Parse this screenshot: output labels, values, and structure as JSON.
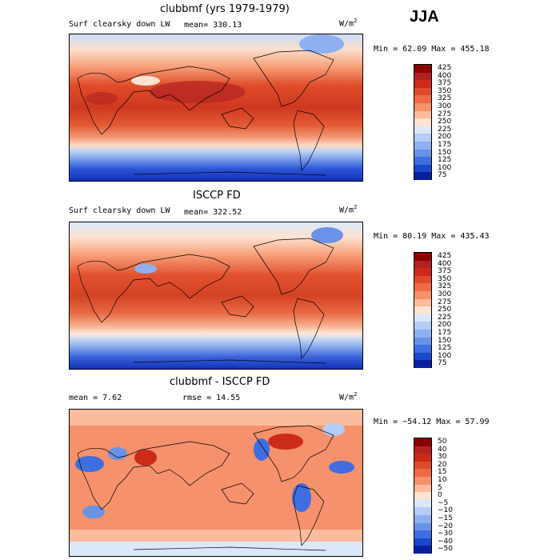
{
  "season": "JJA",
  "colors": {
    "p425": "#8b0000",
    "p400": "#b22222",
    "p375": "#cc2a1a",
    "p350": "#de4a2a",
    "p325": "#ee6a44",
    "p300": "#f5916c",
    "p275": "#fbbc9d",
    "p250": "#fde3d2",
    "p225": "#dbe8fa",
    "p200": "#b4ccf6",
    "p175": "#8eb0f0",
    "p150": "#6a92e8",
    "p125": "#3f6ee0",
    "p100": "#1c46cc",
    "p75": "#0a1fa0"
  },
  "panels": [
    {
      "title": "clubbmf (yrs 1979-1979)",
      "label": "Surf clearsky down LW",
      "mean_text": "mean= 330.13",
      "units": "W/m",
      "units_sup": "2",
      "minmax": "Min =  62.09 Max = 455.18",
      "colorbar_levels": [
        "425",
        "400",
        "375",
        "350",
        "325",
        "300",
        "275",
        "250",
        "225",
        "200",
        "175",
        "150",
        "125",
        "100",
        "75"
      ]
    },
    {
      "title": "ISCCP FD",
      "label": "Surf clearsky down LW",
      "mean_text": "mean= 322.52",
      "units": "W/m",
      "units_sup": "2",
      "minmax": "Min =  80.19 Max = 435.43",
      "colorbar_levels": [
        "425",
        "400",
        "375",
        "350",
        "325",
        "300",
        "275",
        "250",
        "225",
        "200",
        "175",
        "150",
        "125",
        "100",
        "75"
      ]
    },
    {
      "title": "clubbmf - ISCCP FD",
      "mean_text": "mean =    7.62",
      "rmse_text": "rmse =  14.55",
      "units": "W/m",
      "units_sup": "2",
      "minmax": "Min = −54.12 Max =  57.99",
      "colorbar_levels": [
        "50",
        "40",
        "30",
        "20",
        "15",
        "10",
        "5",
        "0",
        "−5",
        "−10",
        "−15",
        "−20",
        "−30",
        "−40",
        "−50"
      ]
    }
  ],
  "chart_data": [
    {
      "type": "heatmap",
      "title": "clubbmf (yrs 1979-1979)",
      "field": "Surf clearsky down LW",
      "units": "W/m2",
      "mean": 330.13,
      "min": 62.09,
      "max": 455.18,
      "levels": [
        75,
        100,
        125,
        150,
        175,
        200,
        225,
        250,
        275,
        300,
        325,
        350,
        375,
        400,
        425
      ]
    },
    {
      "type": "heatmap",
      "title": "ISCCP FD",
      "field": "Surf clearsky down LW",
      "units": "W/m2",
      "mean": 322.52,
      "min": 80.19,
      "max": 435.43,
      "levels": [
        75,
        100,
        125,
        150,
        175,
        200,
        225,
        250,
        275,
        300,
        325,
        350,
        375,
        400,
        425
      ]
    },
    {
      "type": "heatmap",
      "title": "clubbmf - ISCCP FD",
      "units": "W/m2",
      "mean": 7.62,
      "rmse": 14.55,
      "min": -54.12,
      "max": 57.99,
      "levels": [
        -50,
        -40,
        -30,
        -20,
        -15,
        -10,
        -5,
        0,
        5,
        10,
        15,
        20,
        30,
        40,
        50
      ]
    }
  ]
}
